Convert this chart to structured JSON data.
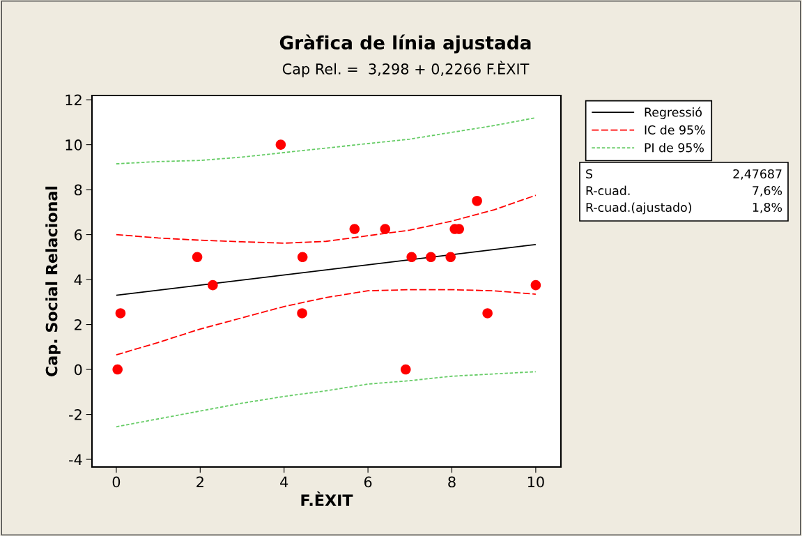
{
  "chart_data": {
    "type": "line",
    "title": "Gràfica de línia ajustada",
    "subtitle": "Cap Rel. =  3,298 + 0,2266 F.ÈXIT",
    "xlabel": "F.ÈXIT",
    "ylabel": "Cap. Social Relacional",
    "xlim": [
      -0.58,
      10.6
    ],
    "ylim": [
      -4.34,
      12.19
    ],
    "xticks": [
      0,
      2,
      4,
      6,
      8,
      10
    ],
    "yticks": [
      -4,
      -2,
      0,
      2,
      4,
      6,
      8,
      10,
      12
    ],
    "grid": false,
    "legend": "top right",
    "series": [
      {
        "type": "scatter",
        "marker": "circle",
        "color": "#ff0000",
        "x": [
          0.03,
          0.1,
          1.93,
          2.3,
          3.92,
          4.44,
          4.43,
          5.68,
          6.41,
          6.9,
          7.04,
          7.5,
          7.97,
          8.07,
          8.17,
          8.6,
          8.85,
          10
        ],
        "values": [
          0,
          2.5,
          5,
          3.75,
          10,
          5,
          2.5,
          6.25,
          6.25,
          0,
          5,
          5,
          5,
          6.25,
          6.25,
          7.5,
          2.5,
          3.75
        ]
      },
      {
        "name": "Regressió",
        "color": "#000000",
        "line_style": "solid",
        "x": [
          0,
          10
        ],
        "values": [
          3.3,
          5.56
        ]
      },
      {
        "name": "IC de 95%",
        "color": "#ff0000",
        "line_style": "dashed",
        "x": [
          0,
          1,
          2,
          3,
          4,
          5,
          6,
          7,
          8,
          9,
          10
        ],
        "values": [
          6.0,
          5.85,
          5.75,
          5.68,
          5.62,
          5.7,
          5.95,
          6.2,
          6.6,
          7.1,
          7.75
        ]
      },
      {
        "color": "#ff0000",
        "line_style": "dashed",
        "x": [
          0,
          1,
          2,
          3,
          4,
          5,
          6,
          7,
          8,
          9,
          10
        ],
        "values": [
          0.65,
          1.2,
          1.8,
          2.3,
          2.8,
          3.2,
          3.5,
          3.55,
          3.55,
          3.5,
          3.35
        ]
      },
      {
        "name": "PI de 95%",
        "color": "#66cc66",
        "line_style": "dotted",
        "x": [
          0,
          1,
          2,
          3,
          4,
          5,
          6,
          7,
          8,
          9,
          10
        ],
        "values": [
          9.15,
          9.25,
          9.3,
          9.45,
          9.65,
          9.85,
          10.05,
          10.25,
          10.55,
          10.85,
          11.2
        ]
      },
      {
        "color": "#66cc66",
        "line_style": "dotted",
        "x": [
          0,
          1,
          2,
          3,
          4,
          5,
          6,
          7,
          8,
          9,
          10
        ],
        "values": [
          -2.55,
          -2.2,
          -1.85,
          -1.5,
          -1.2,
          -0.95,
          -0.65,
          -0.5,
          -0.3,
          -0.2,
          -0.1
        ]
      }
    ],
    "annotations": [
      [
        "S",
        "2,47687"
      ],
      [
        "R-cuad.",
        "7,6%"
      ],
      [
        "R-cuad.(ajustado)",
        "1,8%"
      ]
    ]
  }
}
